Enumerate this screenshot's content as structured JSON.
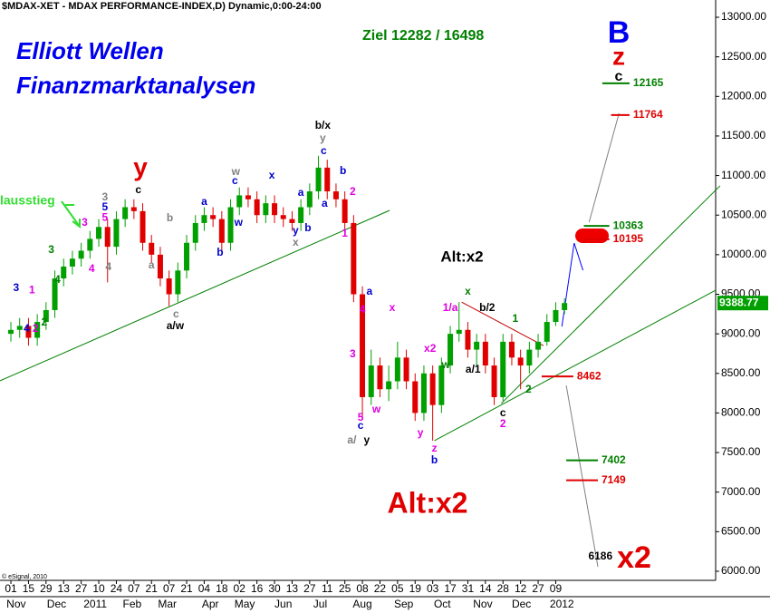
{
  "chart_data": {
    "type": "candlestick",
    "title": "$MDAX-XET - MDAX PERFORMANCE-INDEX,D) Dynamic,0:00-24:00",
    "up_color": "#00a000",
    "down_color": "#e00000",
    "xlim": [
      -1.24,
      80.2
    ],
    "ylim": [
      5885,
      13218
    ],
    "yticks": [
      {
        "value": 6000,
        "label": "6000.00"
      },
      {
        "value": 6500,
        "label": "6500.00"
      },
      {
        "value": 7000,
        "label": "7000.00"
      },
      {
        "value": 7500,
        "label": "7500.00"
      },
      {
        "value": 8000,
        "label": "8000.00"
      },
      {
        "value": 8500,
        "label": "8500.00"
      },
      {
        "value": 9000,
        "label": "9000.00"
      },
      {
        "value": 9500,
        "label": "9500.00"
      },
      {
        "value": 10000,
        "label": "10000.00"
      },
      {
        "value": 10500,
        "label": "10500.00"
      },
      {
        "value": 11000,
        "label": "11000.00"
      },
      {
        "value": 11500,
        "label": "11500.00"
      },
      {
        "value": 12000,
        "label": "12000.00"
      },
      {
        "value": 12500,
        "label": "12500.00"
      },
      {
        "value": 13000,
        "label": "13000.00"
      }
    ],
    "xticks": [
      {
        "value": 0,
        "label": "01"
      },
      {
        "value": 2,
        "label": "15"
      },
      {
        "value": 4,
        "label": "29"
      },
      {
        "value": 6,
        "label": "13"
      },
      {
        "value": 8,
        "label": "27"
      },
      {
        "value": 10,
        "label": "10"
      },
      {
        "value": 12,
        "label": "24"
      },
      {
        "value": 14,
        "label": "07"
      },
      {
        "value": 16,
        "label": "21"
      },
      {
        "value": 18,
        "label": "07"
      },
      {
        "value": 20,
        "label": "21"
      },
      {
        "value": 22,
        "label": "04"
      },
      {
        "value": 24,
        "label": "18"
      },
      {
        "value": 26,
        "label": "02"
      },
      {
        "value": 28,
        "label": "16"
      },
      {
        "value": 30,
        "label": "30"
      },
      {
        "value": 32,
        "label": "13"
      },
      {
        "value": 34,
        "label": "27"
      },
      {
        "value": 36,
        "label": "11"
      },
      {
        "value": 38,
        "label": "25"
      },
      {
        "value": 40,
        "label": "08"
      },
      {
        "value": 42,
        "label": "22"
      },
      {
        "value": 44,
        "label": "05"
      },
      {
        "value": 46,
        "label": "19"
      },
      {
        "value": 48,
        "label": "03"
      },
      {
        "value": 50,
        "label": "17"
      },
      {
        "value": 52,
        "label": "31"
      },
      {
        "value": 54,
        "label": "14"
      },
      {
        "value": 56,
        "label": "28"
      },
      {
        "value": 58,
        "label": "12"
      },
      {
        "value": 60,
        "label": "27"
      },
      {
        "value": 62,
        "label": "09"
      }
    ],
    "month_labels": [
      {
        "value": 0.6,
        "label": "Nov"
      },
      {
        "value": 5.2,
        "label": "Dec"
      },
      {
        "value": 9.6,
        "label": "2011"
      },
      {
        "value": 13.8,
        "label": "Feb"
      },
      {
        "value": 17.8,
        "label": "Mar"
      },
      {
        "value": 22.7,
        "label": "Apr"
      },
      {
        "value": 26.6,
        "label": "May"
      },
      {
        "value": 31,
        "label": "Jun"
      },
      {
        "value": 35.2,
        "label": "Jul"
      },
      {
        "value": 40,
        "label": "Aug"
      },
      {
        "value": 44.7,
        "label": "Sep"
      },
      {
        "value": 49.1,
        "label": "Oct"
      },
      {
        "value": 53.7,
        "label": "Nov"
      },
      {
        "value": 58.1,
        "label": "Dec"
      },
      {
        "value": 62.7,
        "label": "2012"
      }
    ],
    "open": [
      9000,
      9050,
      9100,
      8950,
      9150,
      9300,
      9700,
      9850,
      9950,
      10050,
      10200,
      10350,
      10100,
      10450,
      10600,
      10550,
      10150,
      10000,
      9700,
      9500,
      9800,
      10150,
      10400,
      10500,
      10450,
      10150,
      10600,
      10750,
      10700,
      10500,
      10650,
      10500,
      10450,
      10400,
      10600,
      10800,
      11100,
      10800,
      10700,
      10400,
      9500,
      8200,
      8600,
      8300,
      8400,
      8700,
      8400,
      8000,
      8500,
      8100,
      8600,
      9000,
      9050,
      8800,
      8900,
      8600,
      8200,
      8900,
      8700,
      8600,
      8800,
      8900,
      9150,
      9300
    ],
    "high": [
      9150,
      9200,
      9200,
      9250,
      9400,
      9800,
      9950,
      10050,
      10150,
      10300,
      10450,
      10450,
      10550,
      10700,
      10700,
      10650,
      10250,
      10100,
      9800,
      9900,
      10250,
      10500,
      10600,
      10600,
      10550,
      10700,
      10850,
      10850,
      10800,
      10750,
      10750,
      10600,
      10550,
      10700,
      10900,
      11250,
      11200,
      10900,
      10800,
      10500,
      9600,
      8800,
      8700,
      8600,
      8900,
      8800,
      8500,
      8600,
      8600,
      8700,
      9100,
      9400,
      9150,
      9000,
      9000,
      8700,
      9000,
      9000,
      8800,
      8900,
      9000,
      9250,
      9400,
      9450
    ],
    "low": [
      8900,
      8950,
      8850,
      8850,
      9050,
      9200,
      9600,
      9750,
      9850,
      9950,
      10100,
      9650,
      10000,
      10350,
      10450,
      10050,
      9900,
      9600,
      9350,
      9400,
      9700,
      10050,
      10300,
      10350,
      10050,
      10050,
      10500,
      10600,
      10400,
      10400,
      10400,
      10350,
      10300,
      10300,
      10500,
      10700,
      10700,
      10600,
      10300,
      9400,
      7950,
      8100,
      8200,
      8150,
      8300,
      8300,
      7900,
      7900,
      7650,
      8000,
      8500,
      8900,
      8700,
      8600,
      8500,
      8100,
      8150,
      8600,
      8300,
      8500,
      8700,
      8850,
      9100,
      9250
    ],
    "close": [
      9050,
      9100,
      8950,
      9150,
      9300,
      9700,
      9850,
      9950,
      10050,
      10200,
      10350,
      10100,
      10450,
      10600,
      10550,
      10150,
      10000,
      9700,
      9500,
      9800,
      10150,
      10400,
      10500,
      10450,
      10150,
      10600,
      10750,
      10700,
      10500,
      10650,
      10500,
      10450,
      10400,
      10600,
      10800,
      11100,
      10800,
      10700,
      10400,
      9500,
      8200,
      8600,
      8300,
      8400,
      8700,
      8400,
      8000,
      8500,
      8100,
      8600,
      9000,
      9050,
      8800,
      8900,
      8600,
      8200,
      8900,
      8700,
      8600,
      8800,
      8900,
      9150,
      9300,
      9388.77
    ],
    "trendlines": [
      {
        "color": "#008000",
        "x": [
          -1.24,
          43.1
        ],
        "y": [
          8406,
          10560
        ]
      },
      {
        "color": "#008000",
        "x": [
          48.2,
          80.2
        ],
        "y": [
          7650,
          9551
        ]
      },
      {
        "color": "#008000",
        "x": [
          55.8,
          80.7
        ],
        "y": [
          8120,
          10870
        ]
      },
      {
        "color": "#c00000",
        "x": [
          51.3,
          60.6
        ],
        "y": [
          9400,
          8850
        ]
      },
      {
        "color": "#0000ff",
        "x": [
          62.7,
          64.1,
          65.1
        ],
        "y": [
          9093,
          10147,
          9803
        ]
      },
      {
        "color": "#808080",
        "x": [
          65.8,
          69.2
        ],
        "y": [
          10411,
          11785
        ]
      },
      {
        "color": "#808080",
        "x": [
          63.2,
          66.8
        ],
        "y": [
          8348,
          6057
        ]
      }
    ],
    "targets": [
      {
        "value": 12165,
        "color": "#008000",
        "from": 67.3,
        "to": 70.4
      },
      {
        "value": 11764,
        "color": "#e00000",
        "from": 68.3,
        "to": 70.4
      },
      {
        "value": 10363,
        "color": "#008000",
        "from": 65.2,
        "to": 68.1
      },
      {
        "value": 10195,
        "color": "#e00000",
        "from": 65.2,
        "to": 68.1
      },
      {
        "value": 8462,
        "color": "#e00000",
        "from": 60.4,
        "to": 64.0
      },
      {
        "value": 7402,
        "color": "#008000",
        "from": 63.2,
        "to": 66.8
      },
      {
        "value": 7149,
        "color": "#e00000",
        "from": 63.2,
        "to": 66.8
      },
      {
        "value": 6186,
        "color": "#000000",
        "from": 65.3,
        "to": 65.3
      }
    ],
    "wave_labels": [
      {
        "text": "3",
        "x": 0.6,
        "y": 9574,
        "color": "#0000cc"
      },
      {
        "text": "4",
        "x": 1.8,
        "y": 9059,
        "color": "#0000cc"
      },
      {
        "text": "2",
        "x": 2.8,
        "y": 9059,
        "color": "#e000e0"
      },
      {
        "text": "1",
        "x": 2.4,
        "y": 9550,
        "color": "#e000e0"
      },
      {
        "text": "2",
        "x": 3.8,
        "y": 9140,
        "color": "#008000"
      },
      {
        "text": "3",
        "x": 4.6,
        "y": 10055,
        "color": "#008000"
      },
      {
        "text": "4",
        "x": 5.3,
        "y": 9677,
        "color": "#008000"
      },
      {
        "text": "3",
        "x": 8.4,
        "y": 10400,
        "color": "#e000e0"
      },
      {
        "text": "4",
        "x": 9.2,
        "y": 9815,
        "color": "#e000e0"
      },
      {
        "text": "3",
        "x": 10.7,
        "y": 10720,
        "color": "#808080"
      },
      {
        "text": "5",
        "x": 10.7,
        "y": 10594,
        "color": "#0000cc"
      },
      {
        "text": "5",
        "x": 10.7,
        "y": 10467,
        "color": "#e000e0"
      },
      {
        "text": "4",
        "x": 11.1,
        "y": 9838,
        "color": "#808080"
      },
      {
        "text": "c",
        "x": 14.5,
        "y": 10811,
        "color": "#000000"
      },
      {
        "text": "b",
        "x": 18.1,
        "y": 10456,
        "color": "#808080"
      },
      {
        "text": "a",
        "x": 16,
        "y": 9860,
        "color": "#808080"
      },
      {
        "text": "c",
        "x": 18.8,
        "y": 9242,
        "color": "#808080"
      },
      {
        "text": "a/w",
        "x": 18.7,
        "y": 9093,
        "color": "#000000"
      },
      {
        "text": "a",
        "x": 22,
        "y": 10663,
        "color": "#0000cc"
      },
      {
        "text": "b",
        "x": 23.8,
        "y": 10021,
        "color": "#0000cc"
      },
      {
        "text": "w",
        "x": 25.6,
        "y": 11041,
        "color": "#808080"
      },
      {
        "text": "c",
        "x": 25.5,
        "y": 10926,
        "color": "#0000cc"
      },
      {
        "text": "w",
        "x": 25.9,
        "y": 10399,
        "color": "#0000cc"
      },
      {
        "text": "x",
        "x": 29.7,
        "y": 10995,
        "color": "#0000cc"
      },
      {
        "text": "a",
        "x": 33,
        "y": 10777,
        "color": "#0000cc"
      },
      {
        "text": "b",
        "x": 33.8,
        "y": 10330,
        "color": "#0000cc"
      },
      {
        "text": "y",
        "x": 32.4,
        "y": 10296,
        "color": "#0000cc"
      },
      {
        "text": "x",
        "x": 32.4,
        "y": 10147,
        "color": "#808080"
      },
      {
        "text": "b/x",
        "x": 35.5,
        "y": 11625,
        "color": "#000000"
      },
      {
        "text": "y",
        "x": 35.5,
        "y": 11465,
        "color": "#808080"
      },
      {
        "text": "c",
        "x": 35.6,
        "y": 11304,
        "color": "#0000cc"
      },
      {
        "text": "a",
        "x": 35.7,
        "y": 10640,
        "color": "#0000cc"
      },
      {
        "text": "b",
        "x": 37.8,
        "y": 11052,
        "color": "#0000cc"
      },
      {
        "text": "2",
        "x": 38.9,
        "y": 10789,
        "color": "#e000e0"
      },
      {
        "text": "1",
        "x": 38,
        "y": 10262,
        "color": "#e000e0"
      },
      {
        "text": "a",
        "x": 40.8,
        "y": 9528,
        "color": "#0000cc"
      },
      {
        "text": "4",
        "x": 40,
        "y": 9299,
        "color": "#e000e0"
      },
      {
        "text": "x",
        "x": 43.4,
        "y": 9322,
        "color": "#e000e0"
      },
      {
        "text": "3",
        "x": 38.9,
        "y": 8738,
        "color": "#e000e0"
      },
      {
        "text": "5",
        "x": 39.8,
        "y": 7936,
        "color": "#e000e0"
      },
      {
        "text": "c",
        "x": 39.8,
        "y": 7833,
        "color": "#0000cc"
      },
      {
        "text": "w",
        "x": 41.6,
        "y": 8039,
        "color": "#e000e0"
      },
      {
        "text": "a/",
        "x": 38.8,
        "y": 7650,
        "color": "#808080"
      },
      {
        "text": "y",
        "x": 40.5,
        "y": 7650,
        "color": "#000000"
      },
      {
        "text": "y",
        "x": 46.6,
        "y": 7741,
        "color": "#e000e0"
      },
      {
        "text": "x2",
        "x": 47.7,
        "y": 8807,
        "color": "#e000e0"
      },
      {
        "text": "z",
        "x": 48.2,
        "y": 7547,
        "color": "#e000e0"
      },
      {
        "text": "b",
        "x": 48.2,
        "y": 7398,
        "color": "#0000cc"
      },
      {
        "text": "w",
        "x": 49.5,
        "y": 8600,
        "color": "#008000"
      },
      {
        "text": "1/a",
        "x": 50,
        "y": 9322,
        "color": "#e000e0"
      },
      {
        "text": "x",
        "x": 52,
        "y": 9528,
        "color": "#008000"
      },
      {
        "text": "b/2",
        "x": 54.2,
        "y": 9322,
        "color": "#000000"
      },
      {
        "text": "a/1",
        "x": 52.6,
        "y": 8543,
        "color": "#000000"
      },
      {
        "text": "1",
        "x": 57.4,
        "y": 9185,
        "color": "#008000"
      },
      {
        "text": "c",
        "x": 56,
        "y": 7993,
        "color": "#000000"
      },
      {
        "text": "2",
        "x": 56,
        "y": 7856,
        "color": "#e000e0"
      },
      {
        "text": "2",
        "x": 58.9,
        "y": 8291,
        "color": "#008000"
      }
    ],
    "annotations": {
      "heading1": "Elliott Wellen",
      "heading2": "Finanzmarktanalysen",
      "target": "Ziel 12282 / 16498",
      "big_b": "B",
      "big_z": "z",
      "big_c": "c",
      "big_y": "y",
      "alt_black": "Alt:x2",
      "alt_red": "Alt:x2",
      "x2": "x2",
      "exit": "lausstieg",
      "copyright": "© eSignal, 2010"
    }
  }
}
